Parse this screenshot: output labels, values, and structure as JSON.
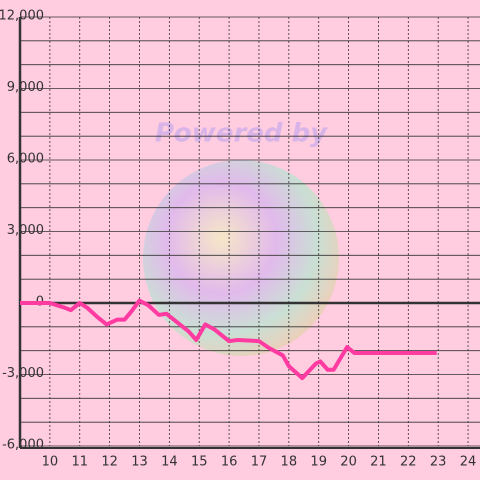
{
  "chart_data": {
    "type": "line",
    "watermark": "Powered by",
    "x": [
      9,
      10,
      10.5,
      10.7,
      11,
      11.25,
      11.6,
      11.9,
      12.25,
      12.5,
      12.7,
      13,
      13.3,
      13.65,
      13.9,
      14.25,
      14.65,
      14.9,
      15.2,
      15.5,
      16,
      16.3,
      17,
      17.35,
      17.8,
      18,
      18.45,
      18.9,
      19.05,
      19.3,
      19.5,
      19.95,
      20.2,
      22.95
    ],
    "series": [
      {
        "color": "#ff3aa0",
        "values": [
          0,
          0,
          -200,
          -300,
          0,
          -200,
          -600,
          -900,
          -700,
          -700,
          -400,
          100,
          -100,
          -500,
          -450,
          -800,
          -1200,
          -1550,
          -900,
          -1100,
          -1600,
          -1550,
          -1600,
          -1900,
          -2200,
          -2650,
          -3150,
          -2550,
          -2450,
          -2800,
          -2800,
          -1850,
          -2100,
          -2100
        ]
      }
    ],
    "xlim": [
      9,
      24.4
    ],
    "xticks": [
      10,
      11,
      12,
      13,
      14,
      15,
      16,
      17,
      18,
      19,
      20,
      21,
      22,
      23,
      24
    ],
    "ylim": [
      -6000,
      12000
    ],
    "yticks": [
      {
        "value": -6000,
        "label": "-6,000"
      },
      {
        "value": -3000,
        "label": "-3,000"
      },
      0,
      {
        "value": 3000,
        "label": "3,000"
      },
      {
        "value": 6000,
        "label": "6,000"
      },
      {
        "value": 9000,
        "label": "9,000"
      },
      {
        "value": 12000,
        "label": "12,000"
      }
    ],
    "y_minor_ticks": [
      -5000,
      -4000,
      -2000,
      -1000,
      1000,
      2000,
      4000,
      5000,
      7000,
      8000,
      10000,
      11000
    ],
    "grid": true
  }
}
